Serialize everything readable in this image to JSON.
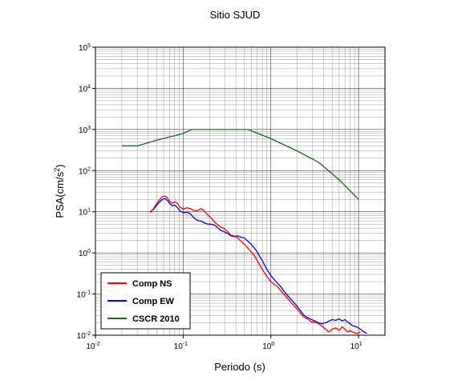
{
  "chart_data": {
    "type": "line",
    "title": "Sitio SJUD",
    "xlabel": "Periodo (s)",
    "ylabel_prefix": "PSA(cm/s",
    "ylabel_sup": "2",
    "ylabel_suffix": ")",
    "x_scale": "log",
    "y_scale": "log",
    "xlim": [
      0.01,
      20
    ],
    "ylim": [
      0.01,
      100000
    ],
    "x_ticks": [
      {
        "base": "10",
        "exp": "-2",
        "value": 0.01
      },
      {
        "base": "10",
        "exp": "-1",
        "value": 0.1
      },
      {
        "base": "10",
        "exp": "0",
        "value": 1
      },
      {
        "base": "10",
        "exp": "1",
        "value": 10
      }
    ],
    "y_ticks": [
      {
        "base": "10",
        "exp": "-2",
        "value": 0.01
      },
      {
        "base": "10",
        "exp": "-1",
        "value": 0.1
      },
      {
        "base": "10",
        "exp": "0",
        "value": 1
      },
      {
        "base": "10",
        "exp": "1",
        "value": 10
      },
      {
        "base": "10",
        "exp": "2",
        "value": 100
      },
      {
        "base": "10",
        "exp": "3",
        "value": 1000
      },
      {
        "base": "10",
        "exp": "4",
        "value": 10000
      },
      {
        "base": "10",
        "exp": "5",
        "value": 100000
      }
    ],
    "grid": true,
    "legend_position": "bottom-left",
    "series": [
      {
        "name": "Comp NS",
        "color": "#ff0000",
        "points": [
          [
            0.042,
            9.5
          ],
          [
            0.046,
            12
          ],
          [
            0.05,
            16
          ],
          [
            0.054,
            20
          ],
          [
            0.058,
            23.5
          ],
          [
            0.062,
            24
          ],
          [
            0.066,
            22
          ],
          [
            0.07,
            18
          ],
          [
            0.075,
            16
          ],
          [
            0.08,
            17.5
          ],
          [
            0.085,
            16.5
          ],
          [
            0.092,
            13
          ],
          [
            0.1,
            11.5
          ],
          [
            0.11,
            12.5
          ],
          [
            0.12,
            12
          ],
          [
            0.13,
            11
          ],
          [
            0.14,
            10.5
          ],
          [
            0.15,
            11
          ],
          [
            0.16,
            12
          ],
          [
            0.17,
            11
          ],
          [
            0.19,
            8.5
          ],
          [
            0.21,
            7
          ],
          [
            0.23,
            5.5
          ],
          [
            0.25,
            4.8
          ],
          [
            0.27,
            4.2
          ],
          [
            0.29,
            4
          ],
          [
            0.32,
            3.3
          ],
          [
            0.35,
            2.7
          ],
          [
            0.38,
            2.6
          ],
          [
            0.42,
            2.3
          ],
          [
            0.46,
            1.9
          ],
          [
            0.5,
            1.6
          ],
          [
            0.55,
            1.3
          ],
          [
            0.6,
            1.05
          ],
          [
            0.65,
            0.85
          ],
          [
            0.7,
            0.65
          ],
          [
            0.75,
            0.5
          ],
          [
            0.8,
            0.4
          ],
          [
            0.85,
            0.32
          ],
          [
            0.9,
            0.27
          ],
          [
            1.0,
            0.2
          ],
          [
            1.1,
            0.17
          ],
          [
            1.2,
            0.15
          ],
          [
            1.3,
            0.12
          ],
          [
            1.4,
            0.1
          ],
          [
            1.5,
            0.085
          ],
          [
            1.6,
            0.072
          ],
          [
            1.8,
            0.055
          ],
          [
            2.0,
            0.043
          ],
          [
            2.2,
            0.033
          ],
          [
            2.4,
            0.027
          ],
          [
            2.6,
            0.025
          ],
          [
            2.9,
            0.021
          ],
          [
            3.2,
            0.021
          ],
          [
            3.5,
            0.019
          ],
          [
            3.8,
            0.017
          ],
          [
            4.2,
            0.014
          ],
          [
            4.6,
            0.012
          ],
          [
            5.0,
            0.014
          ],
          [
            5.5,
            0.015
          ],
          [
            6.0,
            0.013
          ],
          [
            6.5,
            0.016
          ],
          [
            7.0,
            0.014
          ],
          [
            7.5,
            0.012
          ],
          [
            8.0,
            0.013
          ],
          [
            8.5,
            0.012
          ],
          [
            9.5,
            0.011
          ],
          [
            10.5,
            0.012
          ]
        ]
      },
      {
        "name": "Comp EW",
        "color": "#0000ff",
        "points": [
          [
            0.042,
            10
          ],
          [
            0.046,
            11.5
          ],
          [
            0.05,
            14.5
          ],
          [
            0.054,
            17.5
          ],
          [
            0.058,
            20
          ],
          [
            0.062,
            21
          ],
          [
            0.066,
            19
          ],
          [
            0.07,
            16
          ],
          [
            0.075,
            14
          ],
          [
            0.08,
            14.5
          ],
          [
            0.085,
            13
          ],
          [
            0.092,
            10.5
          ],
          [
            0.1,
            9.5
          ],
          [
            0.11,
            9.8
          ],
          [
            0.12,
            9
          ],
          [
            0.13,
            7.5
          ],
          [
            0.14,
            6.5
          ],
          [
            0.15,
            6
          ],
          [
            0.16,
            6
          ],
          [
            0.17,
            5.5
          ],
          [
            0.19,
            5
          ],
          [
            0.21,
            5
          ],
          [
            0.23,
            4.7
          ],
          [
            0.25,
            4
          ],
          [
            0.27,
            3.5
          ],
          [
            0.29,
            3.3
          ],
          [
            0.32,
            3
          ],
          [
            0.35,
            2.6
          ],
          [
            0.38,
            2.5
          ],
          [
            0.42,
            2.6
          ],
          [
            0.46,
            2.4
          ],
          [
            0.5,
            2.3
          ],
          [
            0.55,
            1.9
          ],
          [
            0.6,
            1.6
          ],
          [
            0.65,
            1.3
          ],
          [
            0.7,
            1.05
          ],
          [
            0.75,
            0.8
          ],
          [
            0.8,
            0.65
          ],
          [
            0.85,
            0.5
          ],
          [
            0.9,
            0.4
          ],
          [
            1.0,
            0.28
          ],
          [
            1.1,
            0.22
          ],
          [
            1.2,
            0.18
          ],
          [
            1.3,
            0.15
          ],
          [
            1.4,
            0.12
          ],
          [
            1.5,
            0.1
          ],
          [
            1.6,
            0.085
          ],
          [
            1.8,
            0.065
          ],
          [
            2.0,
            0.05
          ],
          [
            2.2,
            0.038
          ],
          [
            2.4,
            0.03
          ],
          [
            2.6,
            0.027
          ],
          [
            2.9,
            0.024
          ],
          [
            3.2,
            0.022
          ],
          [
            3.5,
            0.02
          ],
          [
            3.8,
            0.019
          ],
          [
            4.2,
            0.02
          ],
          [
            4.6,
            0.022
          ],
          [
            5.0,
            0.024
          ],
          [
            5.5,
            0.023
          ],
          [
            6.0,
            0.025
          ],
          [
            6.5,
            0.022
          ],
          [
            7.0,
            0.024
          ],
          [
            7.5,
            0.021
          ],
          [
            8.0,
            0.019
          ],
          [
            8.5,
            0.017
          ],
          [
            9.5,
            0.016
          ],
          [
            10.5,
            0.014
          ],
          [
            11.5,
            0.012
          ],
          [
            12.5,
            0.011
          ]
        ]
      },
      {
        "name": "CSCR 2010",
        "color": "#1b6b1b",
        "points": [
          [
            0.02,
            400
          ],
          [
            0.03,
            400
          ],
          [
            0.05,
            550
          ],
          [
            0.1,
            800
          ],
          [
            0.125,
            1000
          ],
          [
            0.55,
            1000
          ],
          [
            1.0,
            600
          ],
          [
            2.0,
            300
          ],
          [
            3.5,
            160
          ],
          [
            6.0,
            60
          ],
          [
            10.0,
            20
          ]
        ]
      }
    ]
  }
}
